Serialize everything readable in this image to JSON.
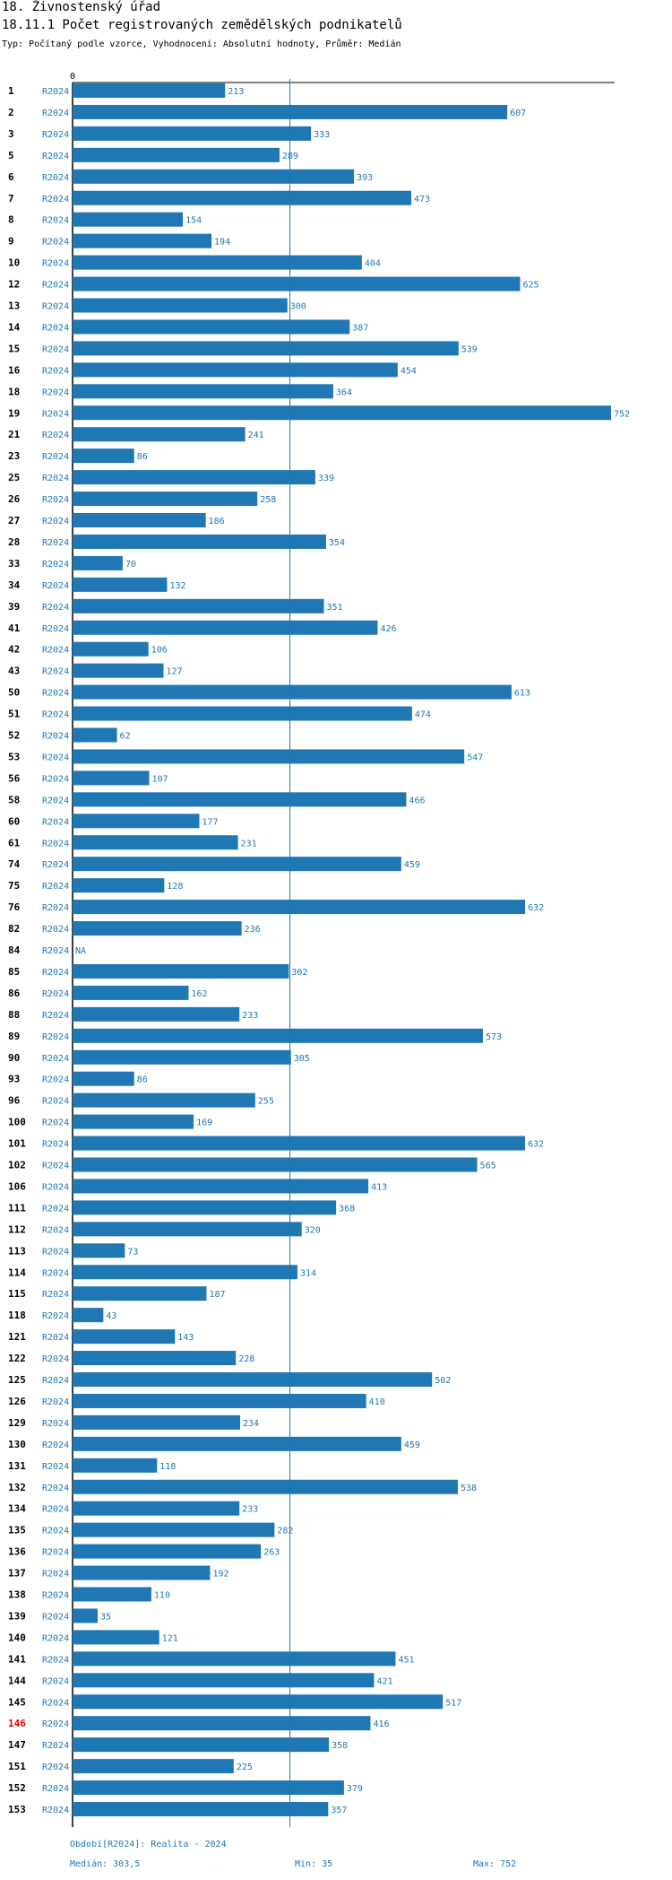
{
  "header": {
    "section_title": "18. Živnostenský úřad",
    "chart_title": "18.11.1 Počet registrovaných zemědělských podnikatelů",
    "subtitle": "Typ: Počítaný podle vzorce, Vyhodnocení: Absolutní hodnoty, Průměr: Medián"
  },
  "colors": {
    "bar": "#1f77b4",
    "median_line": "#1f77b4",
    "highlight_id": "#e00000"
  },
  "chart_data": {
    "type": "bar",
    "orientation": "horizontal",
    "period": "R2024",
    "highlighted": "146",
    "xlim": [
      0,
      752
    ],
    "x_ticks": [
      "0"
    ],
    "median": 303.5,
    "categories": [
      "1",
      "2",
      "3",
      "5",
      "6",
      "7",
      "8",
      "9",
      "10",
      "12",
      "13",
      "14",
      "15",
      "16",
      "18",
      "19",
      "21",
      "23",
      "25",
      "26",
      "27",
      "28",
      "33",
      "34",
      "39",
      "41",
      "42",
      "43",
      "50",
      "51",
      "52",
      "53",
      "56",
      "58",
      "60",
      "61",
      "74",
      "75",
      "76",
      "82",
      "84",
      "85",
      "86",
      "88",
      "89",
      "90",
      "93",
      "96",
      "100",
      "101",
      "102",
      "106",
      "111",
      "112",
      "113",
      "114",
      "115",
      "118",
      "121",
      "122",
      "125",
      "126",
      "129",
      "130",
      "131",
      "132",
      "134",
      "135",
      "136",
      "137",
      "138",
      "139",
      "140",
      "141",
      "144",
      "145",
      "146",
      "147",
      "151",
      "152",
      "153"
    ],
    "values": [
      213,
      607,
      333,
      289,
      393,
      473,
      154,
      194,
      404,
      625,
      300,
      387,
      539,
      454,
      364,
      752,
      241,
      86,
      339,
      258,
      186,
      354,
      70,
      132,
      351,
      426,
      106,
      127,
      613,
      474,
      62,
      547,
      107,
      466,
      177,
      231,
      459,
      128,
      632,
      236,
      null,
      302,
      162,
      233,
      573,
      305,
      86,
      255,
      169,
      632,
      565,
      413,
      368,
      320,
      73,
      314,
      187,
      43,
      143,
      228,
      502,
      410,
      234,
      459,
      118,
      538,
      233,
      282,
      263,
      192,
      110,
      35,
      121,
      451,
      421,
      517,
      416,
      358,
      225,
      379,
      357
    ],
    "missing_label": "NA"
  },
  "footer": {
    "period_label": "Období[R2024]: Realita - 2024",
    "median_label": "Medián: 303,5",
    "min_label": "Min: 35",
    "max_label": "Max: 752"
  }
}
